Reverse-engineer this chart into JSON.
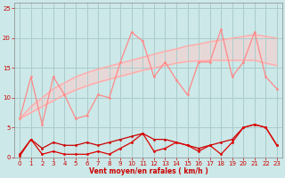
{
  "xlabel": "Vent moyen/en rafales ( km/h )",
  "xlim": [
    -0.5,
    23.5
  ],
  "ylim": [
    0,
    26
  ],
  "yticks": [
    0,
    5,
    10,
    15,
    20,
    25
  ],
  "xticks": [
    0,
    1,
    2,
    3,
    4,
    5,
    6,
    7,
    8,
    9,
    10,
    11,
    12,
    13,
    14,
    15,
    16,
    17,
    18,
    19,
    20,
    21,
    22,
    23
  ],
  "background_color": "#cce8e8",
  "grid_color": "#aacccc",
  "x": [
    0,
    1,
    2,
    3,
    4,
    5,
    6,
    7,
    8,
    9,
    10,
    11,
    12,
    13,
    14,
    15,
    16,
    17,
    18,
    19,
    20,
    21,
    22,
    23
  ],
  "line_upper1": [
    6.5,
    8.5,
    10.0,
    11.5,
    12.5,
    13.5,
    14.2,
    14.8,
    15.3,
    15.8,
    16.3,
    16.8,
    17.3,
    17.8,
    18.2,
    18.7,
    19.0,
    19.4,
    19.7,
    20.0,
    20.3,
    20.6,
    20.3,
    20.0
  ],
  "line_upper2": [
    6.5,
    7.5,
    8.5,
    9.5,
    10.5,
    11.3,
    12.0,
    12.6,
    13.1,
    13.6,
    14.1,
    14.6,
    15.0,
    15.4,
    15.8,
    16.1,
    16.2,
    16.3,
    16.3,
    16.3,
    16.3,
    16.3,
    15.8,
    15.4
  ],
  "line_zigzag": [
    6.5,
    13.5,
    5.5,
    13.5,
    10.5,
    6.5,
    7.0,
    10.5,
    10.0,
    16.0,
    21.0,
    19.5,
    13.5,
    16.0,
    13.0,
    10.5,
    16.0,
    16.0,
    21.5,
    13.5,
    16.0,
    21.0,
    13.5,
    11.5
  ],
  "line_dark1": [
    0.5,
    3.0,
    1.5,
    2.5,
    2.0,
    2.0,
    2.5,
    2.0,
    2.5,
    3.0,
    3.5,
    4.0,
    3.0,
    3.0,
    2.5,
    2.0,
    1.5,
    2.0,
    2.5,
    3.0,
    5.0,
    5.5,
    5.0,
    2.0
  ],
  "line_dark2": [
    0.2,
    3.0,
    0.5,
    1.0,
    0.5,
    0.5,
    0.5,
    1.0,
    0.5,
    1.5,
    2.5,
    4.0,
    1.0,
    1.5,
    2.5,
    2.0,
    1.0,
    2.0,
    0.5,
    2.5,
    5.0,
    5.5,
    5.0,
    2.0
  ],
  "line_bottom": [
    0,
    0,
    0,
    0,
    0,
    0,
    0,
    0,
    0,
    0,
    0,
    0,
    0,
    0,
    0,
    0,
    0,
    0,
    0,
    0,
    0,
    0,
    0,
    0
  ],
  "color_upper_line": "#ffaaaa",
  "color_zigzag": "#ff8888",
  "color_dark": "#cc0000",
  "color_darkred": "#dd0000"
}
